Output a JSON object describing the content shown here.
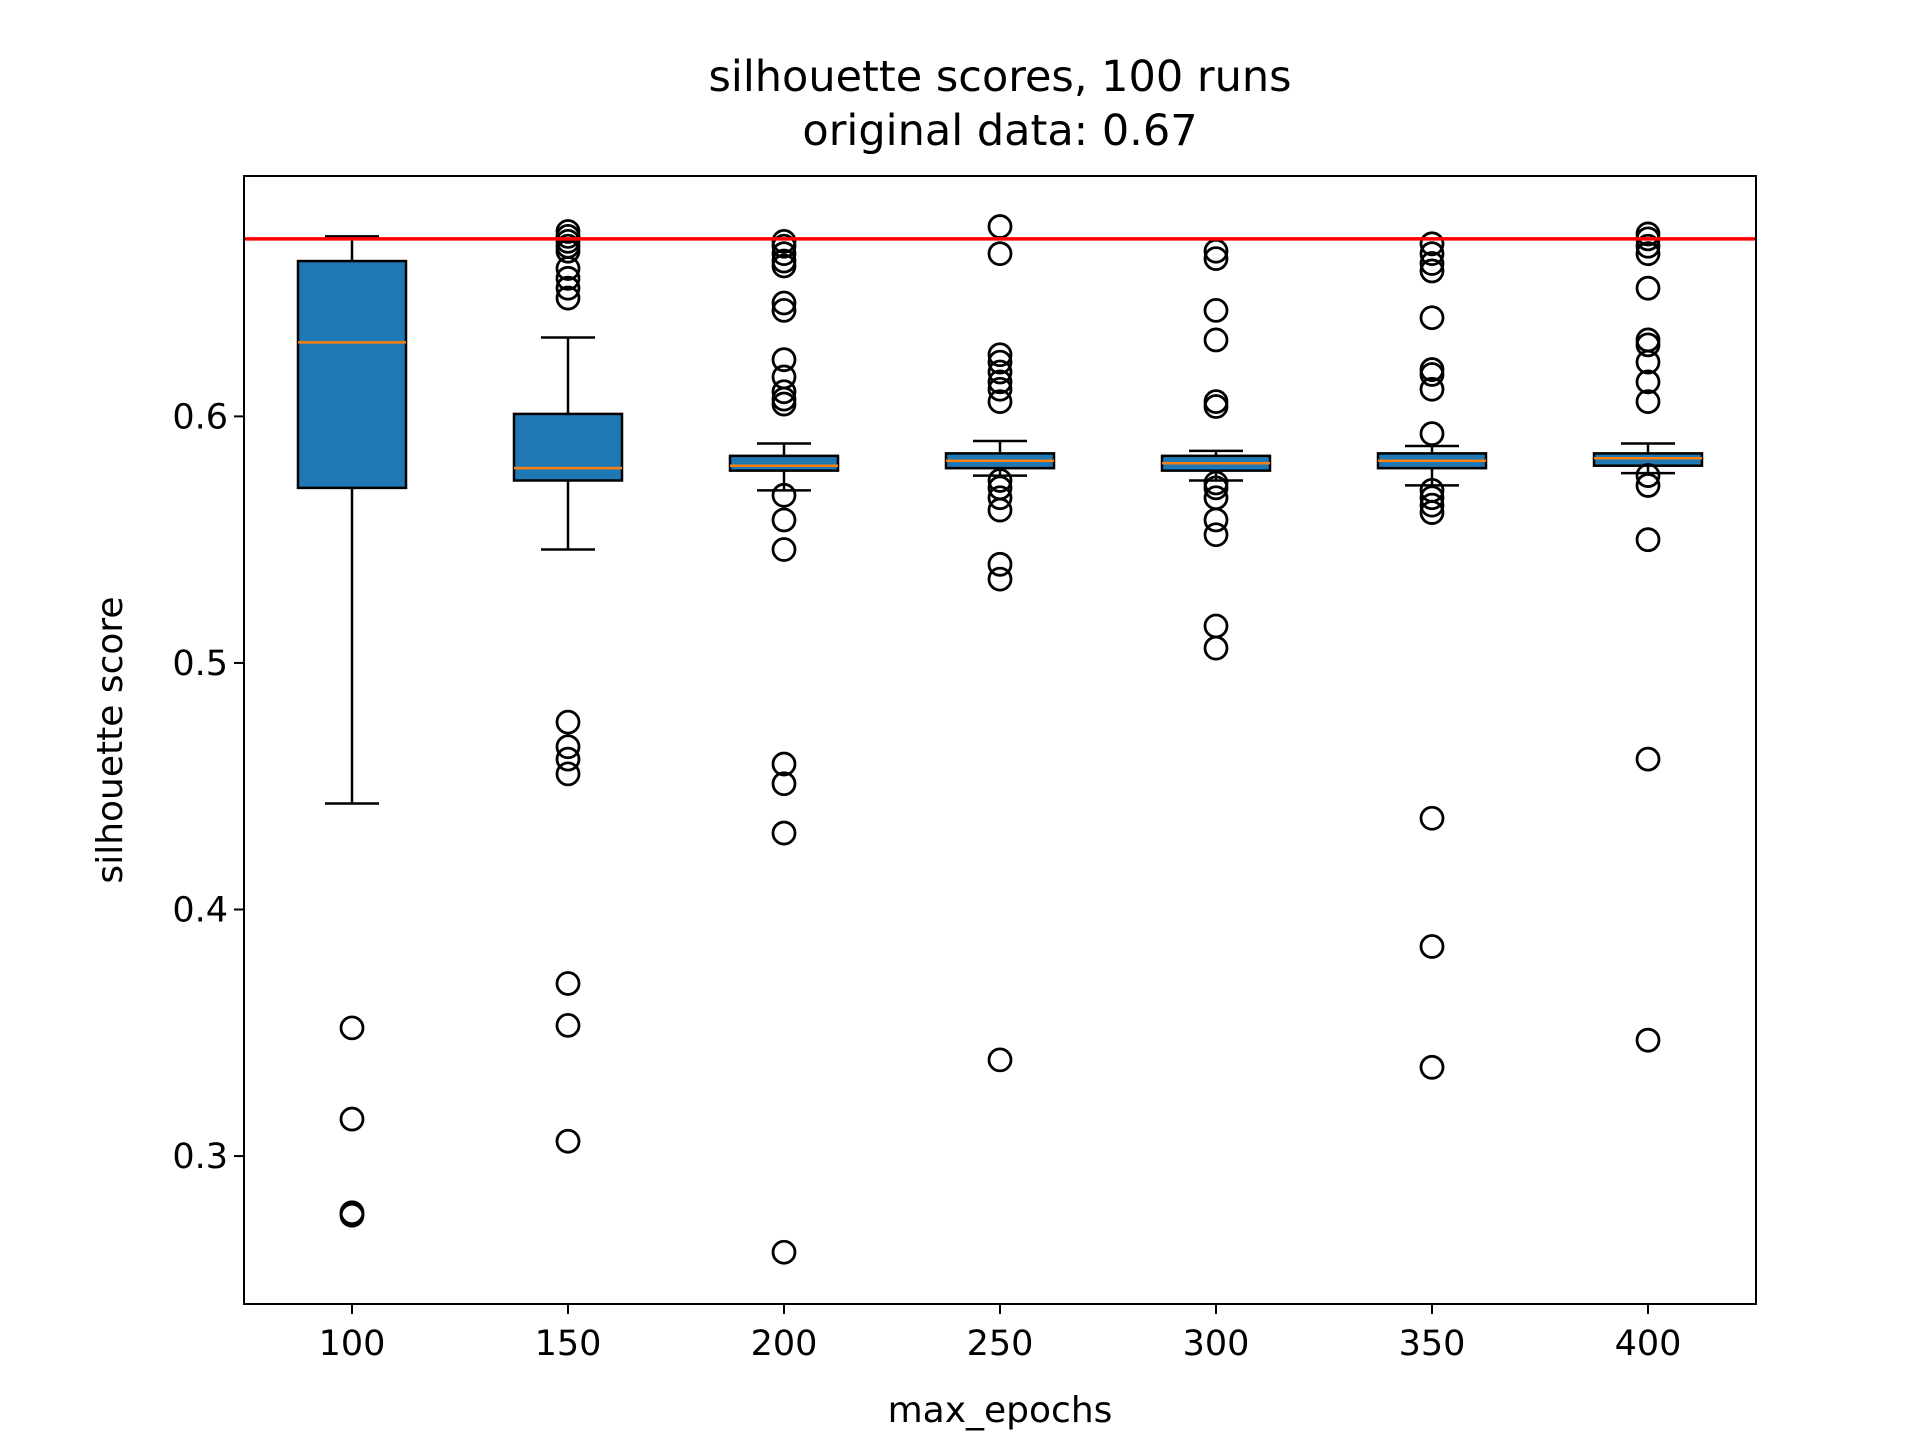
{
  "chart_data": {
    "type": "box",
    "title": "silhouette scores, 100 runs",
    "subtitle": "original data: 0.67",
    "xlabel": "max_epochs",
    "ylabel": "silhouette score",
    "categories": [
      "100",
      "150",
      "200",
      "250",
      "300",
      "350",
      "400"
    ],
    "ylim": [
      0.24,
      0.6975
    ],
    "yticks": [
      0.3,
      0.4,
      0.5,
      0.6
    ],
    "ytick_labels": [
      "0.3",
      "0.4",
      "0.5",
      "0.6"
    ],
    "grid": false,
    "reference_line": {
      "value": 0.672,
      "color": "#ff0000"
    },
    "box_color": "#1f77b4",
    "median_color": "#ff7f0e",
    "boxes": [
      {
        "category": "100",
        "whislo": 0.443,
        "q1": 0.571,
        "median": 0.63,
        "q3": 0.663,
        "whishi": 0.673,
        "fliers": [
          0.352,
          0.315,
          0.277,
          0.276
        ]
      },
      {
        "category": "150",
        "whislo": 0.546,
        "q1": 0.574,
        "median": 0.579,
        "q3": 0.601,
        "whishi": 0.632,
        "fliers": [
          0.675,
          0.673,
          0.671,
          0.669,
          0.667,
          0.66,
          0.656,
          0.652,
          0.648,
          0.476,
          0.466,
          0.461,
          0.455,
          0.37,
          0.353,
          0.306
        ]
      },
      {
        "category": "200",
        "whislo": 0.57,
        "q1": 0.578,
        "median": 0.58,
        "q3": 0.584,
        "whishi": 0.589,
        "fliers": [
          0.671,
          0.669,
          0.666,
          0.663,
          0.661,
          0.646,
          0.643,
          0.623,
          0.616,
          0.61,
          0.607,
          0.605,
          0.568,
          0.558,
          0.546,
          0.459,
          0.451,
          0.431,
          0.261
        ]
      },
      {
        "category": "250",
        "whislo": 0.576,
        "q1": 0.579,
        "median": 0.582,
        "q3": 0.585,
        "whishi": 0.59,
        "fliers": [
          0.677,
          0.666,
          0.625,
          0.622,
          0.618,
          0.614,
          0.611,
          0.606,
          0.574,
          0.571,
          0.567,
          0.562,
          0.54,
          0.534,
          0.339
        ]
      },
      {
        "category": "300",
        "whislo": 0.574,
        "q1": 0.578,
        "median": 0.581,
        "q3": 0.584,
        "whishi": 0.586,
        "fliers": [
          0.667,
          0.664,
          0.643,
          0.631,
          0.606,
          0.604,
          0.573,
          0.571,
          0.567,
          0.558,
          0.552,
          0.515,
          0.506
        ]
      },
      {
        "category": "350",
        "whislo": 0.572,
        "q1": 0.579,
        "median": 0.582,
        "q3": 0.585,
        "whishi": 0.588,
        "fliers": [
          0.67,
          0.666,
          0.662,
          0.659,
          0.64,
          0.619,
          0.617,
          0.611,
          0.593,
          0.57,
          0.567,
          0.564,
          0.561,
          0.437,
          0.385,
          0.336
        ]
      },
      {
        "category": "400",
        "whislo": 0.577,
        "q1": 0.58,
        "median": 0.583,
        "q3": 0.585,
        "whishi": 0.589,
        "fliers": [
          0.674,
          0.672,
          0.669,
          0.666,
          0.652,
          0.631,
          0.629,
          0.622,
          0.614,
          0.606,
          0.576,
          0.572,
          0.55,
          0.461,
          0.347
        ]
      }
    ]
  }
}
